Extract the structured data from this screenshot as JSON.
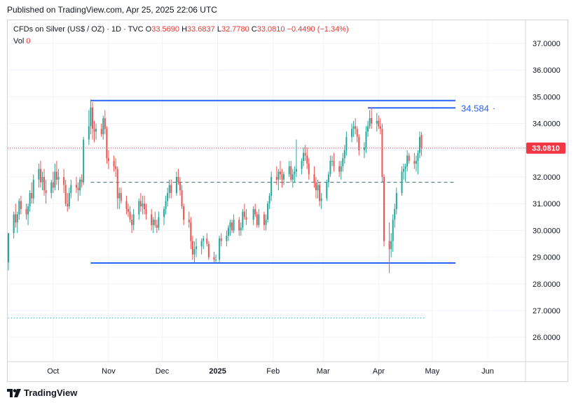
{
  "published": "Published on TradingView.com, Apr 25, 2025 22:06 UTC",
  "legend": {
    "symbol": "CFDs on Silver (US$ / OZ) · 1D · TVC",
    "o_label": "O",
    "o": "33.5690",
    "h_label": "H",
    "h": "33.6837",
    "l_label": "L",
    "l": "32.7780",
    "c_label": "C",
    "c": "33.0810",
    "change": "−0.4490 (−1.34%)",
    "vol_label": "Vol",
    "vol": "0"
  },
  "colors": {
    "up": "#26a69a",
    "down": "#ef5350",
    "line": "#2962ff",
    "price_tag": "#f23645",
    "grid": "#f0f3fa"
  },
  "footer": {
    "brand": "TradingView"
  },
  "chart_data": {
    "type": "candlestick",
    "y_ticks": [
      "37.0000",
      "36.0000",
      "35.0000",
      "34.0000",
      "33.0000",
      "32.0000",
      "31.0000",
      "30.0000",
      "29.0000",
      "28.0000",
      "27.0000",
      "26.0000"
    ],
    "ylim": [
      25.0,
      37.6
    ],
    "x_ticks": [
      {
        "label": "Oct",
        "date": "2024-10-01"
      },
      {
        "label": "Nov",
        "date": "2024-11-01"
      },
      {
        "label": "Dec",
        "date": "2024-12-01"
      },
      {
        "label": "2025",
        "date": "2025-01-01",
        "bold": true
      },
      {
        "label": "Feb",
        "date": "2025-02-01"
      },
      {
        "label": "Mar",
        "date": "2025-03-01"
      },
      {
        "label": "Apr",
        "date": "2025-04-01"
      },
      {
        "label": "May",
        "date": "2025-05-01"
      },
      {
        "label": "Jun",
        "date": "2025-06-01"
      }
    ],
    "xlim": [
      "2024-09-06",
      "2025-06-05"
    ],
    "last_price": "33.0810",
    "last_value": 33.081,
    "lines": [
      {
        "name": "resistance",
        "value": 34.86,
        "start": "2024-10-22",
        "end": "2025-05-14",
        "style": "solid"
      },
      {
        "name": "level",
        "value": 34.584,
        "label": "34.584",
        "start": "2025-03-26",
        "end": "2025-05-14",
        "style": "solid"
      },
      {
        "name": "support",
        "value": 28.78,
        "start": "2024-10-22",
        "end": "2025-05-14",
        "style": "solid"
      },
      {
        "name": "mid",
        "value": 31.8,
        "start": "2024-10-22",
        "end": "2025-05-14",
        "style": "dashed"
      },
      {
        "name": "lower-dotted",
        "value": 26.72,
        "start": "2024-09-06",
        "end": "2025-04-27",
        "style": "dotted-green"
      }
    ],
    "ohlc": [
      [
        "2024-09-06",
        28.8,
        29.9,
        28.5,
        29.9
      ],
      [
        "2024-09-09",
        29.9,
        30.7,
        29.7,
        30.6
      ],
      [
        "2024-09-10",
        30.6,
        31.0,
        30.1,
        30.3
      ],
      [
        "2024-09-11",
        30.3,
        30.7,
        29.9,
        30.6
      ],
      [
        "2024-09-12",
        30.6,
        31.2,
        30.4,
        31.1
      ],
      [
        "2024-09-13",
        31.1,
        31.3,
        30.6,
        30.8
      ],
      [
        "2024-09-16",
        30.8,
        31.0,
        30.4,
        30.6
      ],
      [
        "2024-09-17",
        30.6,
        31.0,
        30.2,
        30.9
      ],
      [
        "2024-09-18",
        30.9,
        31.5,
        30.7,
        31.4
      ],
      [
        "2024-09-19",
        31.4,
        31.8,
        31.0,
        31.2
      ],
      [
        "2024-09-20",
        31.2,
        32.1,
        31.0,
        31.9
      ],
      [
        "2024-09-23",
        31.9,
        32.5,
        31.6,
        32.3
      ],
      [
        "2024-09-24",
        32.3,
        32.6,
        31.6,
        31.8
      ],
      [
        "2024-09-25",
        31.8,
        32.2,
        31.5,
        32.0
      ],
      [
        "2024-09-26",
        32.0,
        32.3,
        31.3,
        31.5
      ],
      [
        "2024-09-27",
        31.5,
        31.9,
        31.0,
        31.4
      ],
      [
        "2024-09-30",
        31.4,
        31.9,
        31.2,
        31.8
      ],
      [
        "2024-10-01",
        31.8,
        32.2,
        31.4,
        31.6
      ],
      [
        "2024-10-02",
        31.6,
        32.5,
        31.5,
        32.2
      ],
      [
        "2024-10-03",
        32.2,
        32.6,
        31.7,
        31.9
      ],
      [
        "2024-10-04",
        31.9,
        32.3,
        31.5,
        32.0
      ],
      [
        "2024-10-07",
        32.0,
        32.3,
        31.4,
        31.7
      ],
      [
        "2024-10-08",
        31.7,
        31.9,
        30.9,
        31.0
      ],
      [
        "2024-10-09",
        31.0,
        31.4,
        30.7,
        30.9
      ],
      [
        "2024-10-10",
        30.9,
        31.6,
        30.8,
        31.4
      ],
      [
        "2024-10-11",
        31.4,
        31.9,
        31.2,
        31.7
      ],
      [
        "2024-10-14",
        31.7,
        32.0,
        31.4,
        31.6
      ],
      [
        "2024-10-15",
        31.6,
        31.8,
        31.1,
        31.5
      ],
      [
        "2024-10-16",
        31.5,
        32.0,
        31.3,
        31.9
      ],
      [
        "2024-10-17",
        31.9,
        32.1,
        31.6,
        31.8
      ],
      [
        "2024-10-18",
        31.8,
        33.5,
        31.7,
        33.4
      ],
      [
        "2024-10-21",
        33.4,
        34.5,
        33.2,
        33.9
      ],
      [
        "2024-10-22",
        33.9,
        34.9,
        33.6,
        34.6
      ],
      [
        "2024-10-23",
        34.6,
        34.8,
        33.4,
        33.8
      ],
      [
        "2024-10-24",
        33.8,
        34.1,
        33.3,
        33.7
      ],
      [
        "2024-10-25",
        33.7,
        34.0,
        33.4,
        33.8
      ],
      [
        "2024-10-28",
        33.8,
        34.0,
        33.5,
        33.6
      ],
      [
        "2024-10-29",
        33.6,
        34.3,
        33.4,
        34.2
      ],
      [
        "2024-10-30",
        34.2,
        34.5,
        33.6,
        33.8
      ],
      [
        "2024-10-31",
        33.8,
        33.9,
        32.5,
        32.7
      ],
      [
        "2024-11-01",
        32.7,
        33.0,
        32.3,
        32.6
      ],
      [
        "2024-11-04",
        32.6,
        32.8,
        32.2,
        32.4
      ],
      [
        "2024-11-05",
        32.4,
        32.7,
        32.0,
        32.3
      ],
      [
        "2024-11-06",
        32.3,
        32.4,
        30.8,
        31.2
      ],
      [
        "2024-11-07",
        31.2,
        31.6,
        30.8,
        31.4
      ],
      [
        "2024-11-08",
        31.4,
        31.6,
        31.0,
        31.1
      ],
      [
        "2024-11-11",
        31.1,
        31.3,
        30.6,
        30.8
      ],
      [
        "2024-11-12",
        30.8,
        31.0,
        30.5,
        30.7
      ],
      [
        "2024-11-13",
        30.7,
        30.9,
        30.3,
        30.4
      ],
      [
        "2024-11-14",
        30.4,
        30.6,
        29.9,
        30.2
      ],
      [
        "2024-11-15",
        30.2,
        30.8,
        30.0,
        30.6
      ],
      [
        "2024-11-18",
        30.6,
        31.2,
        30.4,
        31.1
      ],
      [
        "2024-11-19",
        31.1,
        31.4,
        30.7,
        30.9
      ],
      [
        "2024-11-20",
        30.9,
        31.3,
        30.6,
        31.0
      ],
      [
        "2024-11-21",
        31.0,
        31.3,
        30.6,
        30.8
      ],
      [
        "2024-11-22",
        30.8,
        31.0,
        30.4,
        30.6
      ],
      [
        "2024-11-25",
        30.6,
        30.8,
        30.0,
        30.2
      ],
      [
        "2024-11-26",
        30.2,
        30.5,
        29.9,
        30.4
      ],
      [
        "2024-11-27",
        30.4,
        30.7,
        30.1,
        30.2
      ],
      [
        "2024-11-28",
        30.2,
        30.4,
        29.9,
        30.1
      ],
      [
        "2024-11-29",
        30.1,
        30.7,
        30.0,
        30.5
      ],
      [
        "2024-12-02",
        30.5,
        30.9,
        30.2,
        30.8
      ],
      [
        "2024-12-03",
        30.8,
        31.3,
        30.6,
        31.1
      ],
      [
        "2024-12-04",
        31.1,
        31.6,
        30.9,
        31.4
      ],
      [
        "2024-12-05",
        31.4,
        31.9,
        31.2,
        31.7
      ],
      [
        "2024-12-06",
        31.7,
        31.9,
        31.2,
        31.4
      ],
      [
        "2024-12-09",
        31.4,
        32.2,
        31.3,
        32.0
      ],
      [
        "2024-12-10",
        32.0,
        32.3,
        31.7,
        31.8
      ],
      [
        "2024-12-11",
        31.8,
        32.0,
        31.3,
        31.5
      ],
      [
        "2024-12-12",
        31.5,
        31.7,
        30.8,
        30.9
      ],
      [
        "2024-12-13",
        30.9,
        31.0,
        30.2,
        30.4
      ],
      [
        "2024-12-16",
        30.4,
        30.7,
        30.1,
        30.3
      ],
      [
        "2024-12-17",
        30.3,
        30.5,
        29.3,
        29.6
      ],
      [
        "2024-12-18",
        29.6,
        29.8,
        28.9,
        29.1
      ],
      [
        "2024-12-19",
        29.1,
        29.6,
        28.8,
        29.3
      ],
      [
        "2024-12-20",
        29.3,
        29.7,
        29.0,
        29.4
      ],
      [
        "2024-12-23",
        29.4,
        29.7,
        29.1,
        29.6
      ],
      [
        "2024-12-24",
        29.6,
        29.8,
        29.3,
        29.7
      ],
      [
        "2024-12-26",
        29.7,
        29.9,
        29.4,
        29.5
      ],
      [
        "2024-12-27",
        29.5,
        29.6,
        28.9,
        29.0
      ],
      [
        "2024-12-30",
        29.0,
        29.2,
        28.8,
        28.9
      ],
      [
        "2024-12-31",
        28.9,
        29.1,
        28.8,
        28.9
      ],
      [
        "2025-01-02",
        28.9,
        29.8,
        28.8,
        29.7
      ],
      [
        "2025-01-03",
        29.7,
        29.9,
        29.4,
        29.6
      ],
      [
        "2025-01-06",
        29.6,
        30.0,
        29.4,
        29.8
      ],
      [
        "2025-01-07",
        29.8,
        30.2,
        29.6,
        30.1
      ],
      [
        "2025-01-08",
        30.1,
        30.4,
        29.8,
        30.3
      ],
      [
        "2025-01-09",
        30.3,
        30.4,
        29.9,
        30.0
      ],
      [
        "2025-01-10",
        30.0,
        30.6,
        29.9,
        30.4
      ],
      [
        "2025-01-13",
        30.4,
        30.5,
        29.8,
        30.0
      ],
      [
        "2025-01-14",
        30.0,
        30.3,
        29.8,
        30.1
      ],
      [
        "2025-01-15",
        30.1,
        30.8,
        30.0,
        30.7
      ],
      [
        "2025-01-16",
        30.7,
        31.0,
        30.4,
        30.5
      ],
      [
        "2025-01-17",
        30.5,
        30.8,
        30.2,
        30.4
      ],
      [
        "2025-01-21",
        30.4,
        30.9,
        30.2,
        30.8
      ],
      [
        "2025-01-22",
        30.8,
        31.0,
        30.5,
        30.6
      ],
      [
        "2025-01-23",
        30.6,
        30.7,
        30.1,
        30.2
      ],
      [
        "2025-01-24",
        30.2,
        30.8,
        30.1,
        30.6
      ],
      [
        "2025-01-27",
        30.6,
        30.7,
        30.0,
        30.2
      ],
      [
        "2025-01-28",
        30.2,
        30.6,
        30.0,
        30.4
      ],
      [
        "2025-01-29",
        30.4,
        31.1,
        30.3,
        31.0
      ],
      [
        "2025-01-30",
        31.0,
        31.4,
        30.8,
        31.3
      ],
      [
        "2025-01-31",
        31.3,
        32.2,
        31.1,
        32.0
      ],
      [
        "2025-02-03",
        32.0,
        32.4,
        31.7,
        31.9
      ],
      [
        "2025-02-04",
        31.9,
        32.3,
        31.5,
        32.2
      ],
      [
        "2025-02-05",
        32.2,
        32.6,
        31.9,
        32.1
      ],
      [
        "2025-02-06",
        32.1,
        32.3,
        31.6,
        31.9
      ],
      [
        "2025-02-07",
        31.9,
        32.2,
        31.7,
        32.1
      ],
      [
        "2025-02-10",
        32.1,
        32.6,
        32.0,
        32.4
      ],
      [
        "2025-02-11",
        32.4,
        32.6,
        31.8,
        31.9
      ],
      [
        "2025-02-12",
        31.9,
        32.3,
        31.6,
        32.1
      ],
      [
        "2025-02-13",
        32.1,
        32.4,
        31.8,
        32.2
      ],
      [
        "2025-02-14",
        32.2,
        33.4,
        32.0,
        32.3
      ],
      [
        "2025-02-17",
        32.3,
        32.7,
        32.1,
        32.6
      ],
      [
        "2025-02-18",
        32.6,
        33.1,
        32.4,
        32.9
      ],
      [
        "2025-02-19",
        32.9,
        33.2,
        32.6,
        32.8
      ],
      [
        "2025-02-20",
        32.8,
        33.1,
        32.3,
        32.5
      ],
      [
        "2025-02-21",
        32.5,
        32.7,
        31.9,
        32.1
      ],
      [
        "2025-02-24",
        32.1,
        32.4,
        31.6,
        31.8
      ],
      [
        "2025-02-25",
        31.8,
        32.0,
        31.2,
        31.5
      ],
      [
        "2025-02-26",
        31.5,
        31.9,
        31.2,
        31.7
      ],
      [
        "2025-02-27",
        31.7,
        31.8,
        30.9,
        31.1
      ],
      [
        "2025-02-28",
        31.1,
        31.4,
        30.8,
        31.2
      ],
      [
        "2025-03-03",
        31.2,
        31.9,
        31.1,
        31.8
      ],
      [
        "2025-03-04",
        31.8,
        32.2,
        31.6,
        32.1
      ],
      [
        "2025-03-05",
        32.1,
        32.8,
        32.0,
        32.6
      ],
      [
        "2025-03-06",
        32.6,
        32.8,
        32.4,
        32.6
      ],
      [
        "2025-03-07",
        32.6,
        32.9,
        32.2,
        32.4
      ],
      [
        "2025-03-10",
        32.4,
        32.6,
        32.0,
        32.2
      ],
      [
        "2025-03-11",
        32.2,
        32.6,
        31.9,
        32.4
      ],
      [
        "2025-03-12",
        32.4,
        32.9,
        32.2,
        32.7
      ],
      [
        "2025-03-13",
        32.7,
        33.2,
        32.5,
        33.0
      ],
      [
        "2025-03-14",
        33.0,
        33.7,
        32.8,
        33.5
      ],
      [
        "2025-03-17",
        33.5,
        34.0,
        33.3,
        33.8
      ],
      [
        "2025-03-18",
        33.8,
        34.1,
        33.5,
        33.9
      ],
      [
        "2025-03-19",
        33.9,
        34.2,
        33.6,
        33.8
      ],
      [
        "2025-03-20",
        33.8,
        33.9,
        33.3,
        33.5
      ],
      [
        "2025-03-21",
        33.5,
        33.6,
        32.8,
        33.0
      ],
      [
        "2025-03-24",
        33.0,
        33.3,
        32.7,
        33.1
      ],
      [
        "2025-03-25",
        33.1,
        33.9,
        32.9,
        33.7
      ],
      [
        "2025-03-26",
        33.7,
        34.1,
        33.5,
        33.9
      ],
      [
        "2025-03-27",
        33.9,
        34.5,
        33.8,
        34.2
      ],
      [
        "2025-03-28",
        34.2,
        34.6,
        33.8,
        34.0
      ],
      [
        "2025-03-31",
        34.0,
        34.4,
        33.7,
        34.1
      ],
      [
        "2025-04-01",
        34.1,
        34.3,
        33.8,
        33.9
      ],
      [
        "2025-04-02",
        33.9,
        34.2,
        33.6,
        33.8
      ],
      [
        "2025-04-03",
        33.8,
        34.0,
        31.8,
        32.0
      ],
      [
        "2025-04-04",
        32.0,
        32.1,
        29.4,
        29.6
      ],
      [
        "2025-04-07",
        29.6,
        30.3,
        28.4,
        29.3
      ],
      [
        "2025-04-08",
        29.3,
        29.9,
        29.0,
        29.6
      ],
      [
        "2025-04-09",
        29.6,
        30.6,
        29.2,
        30.4
      ],
      [
        "2025-04-10",
        30.4,
        31.0,
        30.1,
        30.8
      ],
      [
        "2025-04-11",
        30.8,
        31.6,
        30.6,
        31.4
      ],
      [
        "2025-04-14",
        31.4,
        32.4,
        31.3,
        32.2
      ],
      [
        "2025-04-15",
        32.2,
        32.5,
        31.9,
        32.3
      ],
      [
        "2025-04-16",
        32.3,
        32.5,
        31.8,
        32.4
      ],
      [
        "2025-04-17",
        32.4,
        33.0,
        32.2,
        32.8
      ],
      [
        "2025-04-18",
        32.8,
        32.9,
        32.5,
        32.6
      ],
      [
        "2025-04-21",
        32.6,
        32.9,
        32.3,
        32.5
      ],
      [
        "2025-04-22",
        32.5,
        32.8,
        32.2,
        32.6
      ],
      [
        "2025-04-23",
        32.6,
        33.0,
        32.1,
        32.9
      ],
      [
        "2025-04-24",
        32.9,
        33.7,
        32.7,
        33.5
      ],
      [
        "2025-04-25",
        33.569,
        33.6837,
        32.778,
        33.081
      ]
    ]
  }
}
